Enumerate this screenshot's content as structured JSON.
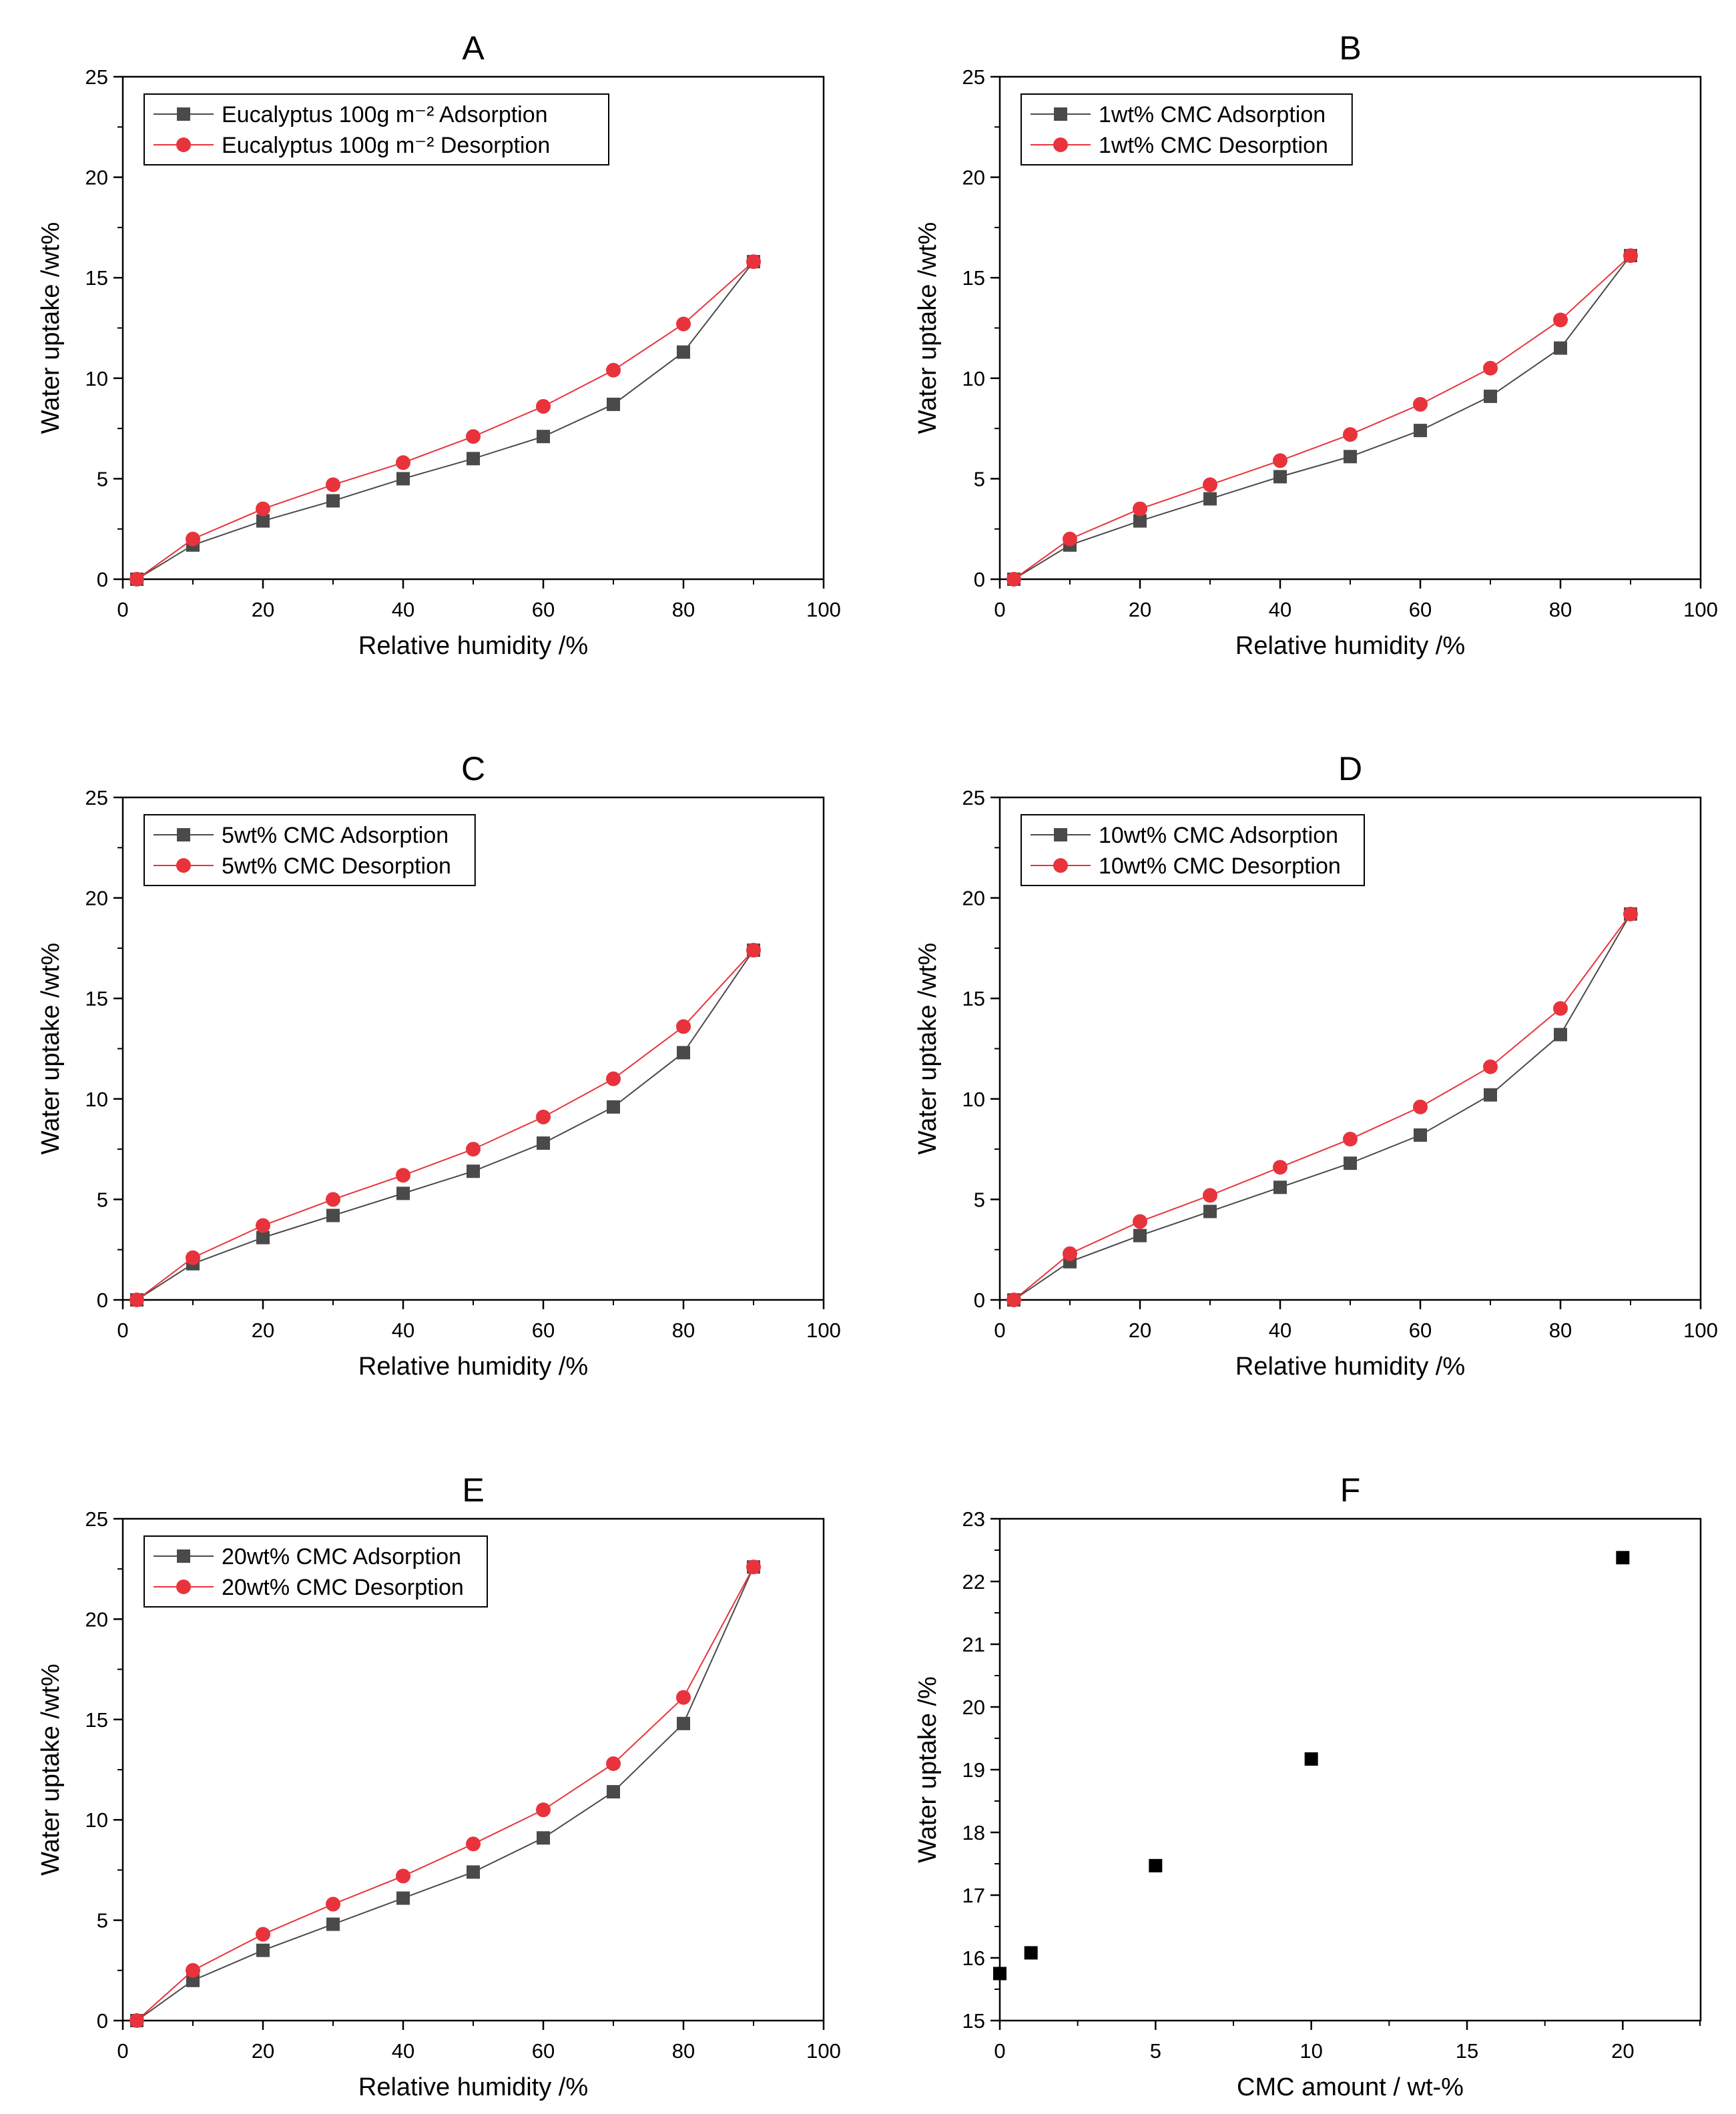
{
  "chart_data": [
    {
      "panel": "A",
      "type": "line",
      "title": "A",
      "xlabel": "Relative humidity /%",
      "ylabel": "Water uptake /wt%",
      "xlim": [
        0,
        100
      ],
      "ylim": [
        0,
        25
      ],
      "xticks": [
        0,
        20,
        40,
        60,
        80,
        100
      ],
      "yticks": [
        0,
        5,
        10,
        15,
        20,
        25
      ],
      "legend": "top-left",
      "grid": false,
      "series": [
        {
          "name": "Eucalyptus 100g m⁻² Adsorption",
          "marker": "square",
          "color": "#4a4a4a",
          "x": [
            2,
            10,
            20,
            30,
            40,
            50,
            60,
            70,
            80,
            90
          ],
          "y": [
            0.0,
            1.7,
            2.9,
            3.9,
            5.0,
            6.0,
            7.1,
            8.7,
            11.3,
            15.8
          ]
        },
        {
          "name": "Eucalyptus 100g m⁻² Desorption",
          "marker": "circle",
          "color": "#e8333c",
          "x": [
            2,
            10,
            20,
            30,
            40,
            50,
            60,
            70,
            80,
            90
          ],
          "y": [
            0.0,
            2.0,
            3.5,
            4.7,
            5.8,
            7.1,
            8.6,
            10.4,
            12.7,
            15.8
          ]
        }
      ]
    },
    {
      "panel": "B",
      "type": "line",
      "title": "B",
      "xlabel": "Relative humidity /%",
      "ylabel": "Water uptake /wt%",
      "xlim": [
        0,
        100
      ],
      "ylim": [
        0,
        25
      ],
      "xticks": [
        0,
        20,
        40,
        60,
        80,
        100
      ],
      "yticks": [
        0,
        5,
        10,
        15,
        20,
        25
      ],
      "legend": "top-left",
      "grid": false,
      "series": [
        {
          "name": "1wt% CMC Adsorption",
          "marker": "square",
          "color": "#4a4a4a",
          "x": [
            2,
            10,
            20,
            30,
            40,
            50,
            60,
            70,
            80,
            90
          ],
          "y": [
            0.0,
            1.7,
            2.9,
            4.0,
            5.1,
            6.1,
            7.4,
            9.1,
            11.5,
            16.1
          ]
        },
        {
          "name": "1wt% CMC Desorption",
          "marker": "circle",
          "color": "#e8333c",
          "x": [
            2,
            10,
            20,
            30,
            40,
            50,
            60,
            70,
            80,
            90
          ],
          "y": [
            0.0,
            2.0,
            3.5,
            4.7,
            5.9,
            7.2,
            8.7,
            10.5,
            12.9,
            16.1
          ]
        }
      ]
    },
    {
      "panel": "C",
      "type": "line",
      "title": "C",
      "xlabel": "Relative humidity /%",
      "ylabel": "Water uptake /wt%",
      "xlim": [
        0,
        100
      ],
      "ylim": [
        0,
        25
      ],
      "xticks": [
        0,
        20,
        40,
        60,
        80,
        100
      ],
      "yticks": [
        0,
        5,
        10,
        15,
        20,
        25
      ],
      "legend": "top-left",
      "grid": false,
      "series": [
        {
          "name": "5wt% CMC Adsorption",
          "marker": "square",
          "color": "#4a4a4a",
          "x": [
            2,
            10,
            20,
            30,
            40,
            50,
            60,
            70,
            80,
            90
          ],
          "y": [
            0.0,
            1.8,
            3.1,
            4.2,
            5.3,
            6.4,
            7.8,
            9.6,
            12.3,
            17.4
          ]
        },
        {
          "name": "5wt% CMC Desorption",
          "marker": "circle",
          "color": "#e8333c",
          "x": [
            2,
            10,
            20,
            30,
            40,
            50,
            60,
            70,
            80,
            90
          ],
          "y": [
            0.0,
            2.1,
            3.7,
            5.0,
            6.2,
            7.5,
            9.1,
            11.0,
            13.6,
            17.4
          ]
        }
      ]
    },
    {
      "panel": "D",
      "type": "line",
      "title": "D",
      "xlabel": "Relative humidity /%",
      "ylabel": "Water uptake /wt%",
      "xlim": [
        0,
        100
      ],
      "ylim": [
        0,
        25
      ],
      "xticks": [
        0,
        20,
        40,
        60,
        80,
        100
      ],
      "yticks": [
        0,
        5,
        10,
        15,
        20,
        25
      ],
      "legend": "top-left",
      "grid": false,
      "series": [
        {
          "name": "10wt% CMC Adsorption",
          "marker": "square",
          "color": "#4a4a4a",
          "x": [
            2,
            10,
            20,
            30,
            40,
            50,
            60,
            70,
            80,
            90
          ],
          "y": [
            0.0,
            1.9,
            3.2,
            4.4,
            5.6,
            6.8,
            8.2,
            10.2,
            13.2,
            19.2
          ]
        },
        {
          "name": "10wt% CMC Desorption",
          "marker": "circle",
          "color": "#e8333c",
          "x": [
            2,
            10,
            20,
            30,
            40,
            50,
            60,
            70,
            80,
            90
          ],
          "y": [
            0.0,
            2.3,
            3.9,
            5.2,
            6.6,
            8.0,
            9.6,
            11.6,
            14.5,
            19.2
          ]
        }
      ]
    },
    {
      "panel": "E",
      "type": "line",
      "title": "E",
      "xlabel": "Relative humidity /%",
      "ylabel": "Water uptake /wt%",
      "xlim": [
        0,
        100
      ],
      "ylim": [
        0,
        25
      ],
      "xticks": [
        0,
        20,
        40,
        60,
        80,
        100
      ],
      "yticks": [
        0,
        5,
        10,
        15,
        20,
        25
      ],
      "legend": "top-left",
      "grid": false,
      "series": [
        {
          "name": "20wt% CMC Adsorption",
          "marker": "square",
          "color": "#4a4a4a",
          "x": [
            2,
            10,
            20,
            30,
            40,
            50,
            60,
            70,
            80,
            90
          ],
          "y": [
            0.0,
            2.0,
            3.5,
            4.8,
            6.1,
            7.4,
            9.1,
            11.4,
            14.8,
            22.6
          ]
        },
        {
          "name": "20wt% CMC Desorption",
          "marker": "circle",
          "color": "#e8333c",
          "x": [
            2,
            10,
            20,
            30,
            40,
            50,
            60,
            70,
            80,
            90
          ],
          "y": [
            0.0,
            2.5,
            4.3,
            5.8,
            7.2,
            8.8,
            10.5,
            12.8,
            16.1,
            22.6
          ]
        }
      ]
    },
    {
      "panel": "F",
      "type": "scatter",
      "title": "F",
      "xlabel": "CMC amount / wt-%",
      "ylabel": "Water uptake /%",
      "xlim": [
        0,
        22.5
      ],
      "ylim": [
        15,
        23
      ],
      "xticks": [
        0,
        5,
        10,
        15,
        20
      ],
      "yticks": [
        15,
        16,
        17,
        18,
        19,
        20,
        21,
        22,
        23
      ],
      "grid": false,
      "series": [
        {
          "marker": "square",
          "color": "#000000",
          "x": [
            0,
            1,
            5,
            10,
            20
          ],
          "y": [
            15.75,
            16.08,
            17.47,
            19.17,
            22.38
          ]
        }
      ]
    }
  ]
}
